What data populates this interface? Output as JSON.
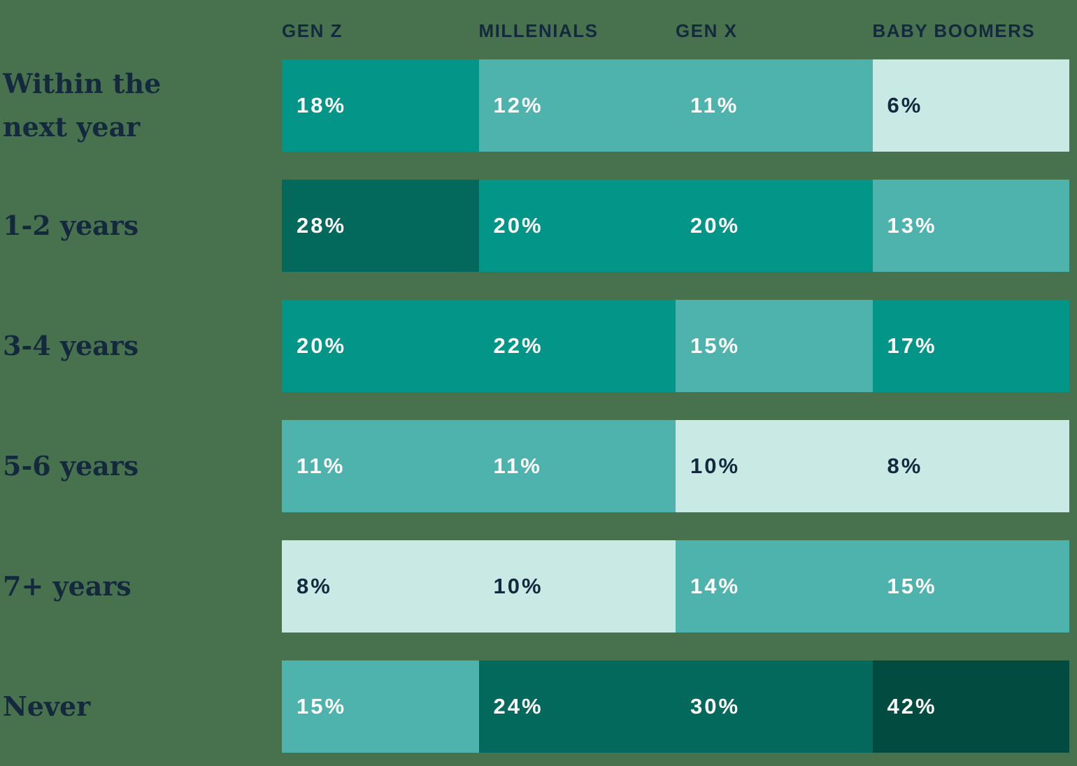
{
  "palette": {
    "background": "#48724E",
    "navy": "#14293D",
    "white": "#FFFFFF",
    "scale": {
      "lightest_0_10": "#C8E9E4",
      "medium_11_15": "#4DB3AC",
      "teal_16_22": "#029588",
      "dark_23_30": "#04695D",
      "darkest_31_plus": "#024B40"
    }
  },
  "chart_data": {
    "type": "heatmap",
    "title": "",
    "columns": [
      "GEN Z",
      "MILLENIALS",
      "GEN X",
      "BABY BOOMERS"
    ],
    "rows": [
      "Within the next year",
      "1-2 years",
      "3-4 years",
      "5-6 years",
      "7+ years",
      "Never"
    ],
    "values_percent": [
      [
        18,
        12,
        11,
        6
      ],
      [
        28,
        20,
        20,
        13
      ],
      [
        20,
        22,
        15,
        17
      ],
      [
        11,
        11,
        10,
        8
      ],
      [
        8,
        10,
        14,
        15
      ],
      [
        15,
        24,
        30,
        42
      ]
    ],
    "unit": "%",
    "legend": "none",
    "color_encoding": "darker cell = higher percentage"
  },
  "table": {
    "headers": [
      {
        "label": "GEN Z"
      },
      {
        "label": "MILLENIALS"
      },
      {
        "label": "GEN X"
      },
      {
        "label": "BABY BOOMERS"
      }
    ],
    "rows": [
      {
        "label": "Within the\nnext year",
        "cells": [
          {
            "value": "18%",
            "bg": "#029588",
            "fg": "#FFFFFF"
          },
          {
            "value": "12%",
            "bg": "#4DB3AC",
            "fg": "#FFFFFF"
          },
          {
            "value": "11%",
            "bg": "#4DB3AC",
            "fg": "#FFFFFF"
          },
          {
            "value": "6%",
            "bg": "#C8E9E4",
            "fg": "#14293D"
          }
        ]
      },
      {
        "label": "1-2 years",
        "cells": [
          {
            "value": "28%",
            "bg": "#04695D",
            "fg": "#FFFFFF"
          },
          {
            "value": "20%",
            "bg": "#029588",
            "fg": "#FFFFFF"
          },
          {
            "value": "20%",
            "bg": "#029588",
            "fg": "#FFFFFF"
          },
          {
            "value": "13%",
            "bg": "#4DB3AC",
            "fg": "#FFFFFF"
          }
        ]
      },
      {
        "label": "3-4 years",
        "cells": [
          {
            "value": "20%",
            "bg": "#029588",
            "fg": "#FFFFFF"
          },
          {
            "value": "22%",
            "bg": "#029588",
            "fg": "#FFFFFF"
          },
          {
            "value": "15%",
            "bg": "#4DB3AC",
            "fg": "#FFFFFF"
          },
          {
            "value": "17%",
            "bg": "#029588",
            "fg": "#FFFFFF"
          }
        ]
      },
      {
        "label": "5-6 years",
        "cells": [
          {
            "value": "11%",
            "bg": "#4DB3AC",
            "fg": "#FFFFFF"
          },
          {
            "value": "11%",
            "bg": "#4DB3AC",
            "fg": "#FFFFFF"
          },
          {
            "value": "10%",
            "bg": "#C8E9E4",
            "fg": "#14293D"
          },
          {
            "value": "8%",
            "bg": "#C8E9E4",
            "fg": "#14293D"
          }
        ]
      },
      {
        "label": "7+ years",
        "cells": [
          {
            "value": "8%",
            "bg": "#C8E9E4",
            "fg": "#14293D"
          },
          {
            "value": "10%",
            "bg": "#C8E9E4",
            "fg": "#14293D"
          },
          {
            "value": "14%",
            "bg": "#4DB3AC",
            "fg": "#FFFFFF"
          },
          {
            "value": "15%",
            "bg": "#4DB3AC",
            "fg": "#FFFFFF"
          }
        ]
      },
      {
        "label": "Never",
        "cells": [
          {
            "value": "15%",
            "bg": "#4DB3AC",
            "fg": "#FFFFFF"
          },
          {
            "value": "24%",
            "bg": "#04695D",
            "fg": "#FFFFFF"
          },
          {
            "value": "30%",
            "bg": "#04695D",
            "fg": "#FFFFFF"
          },
          {
            "value": "42%",
            "bg": "#024B40",
            "fg": "#FFFFFF"
          }
        ]
      }
    ]
  }
}
